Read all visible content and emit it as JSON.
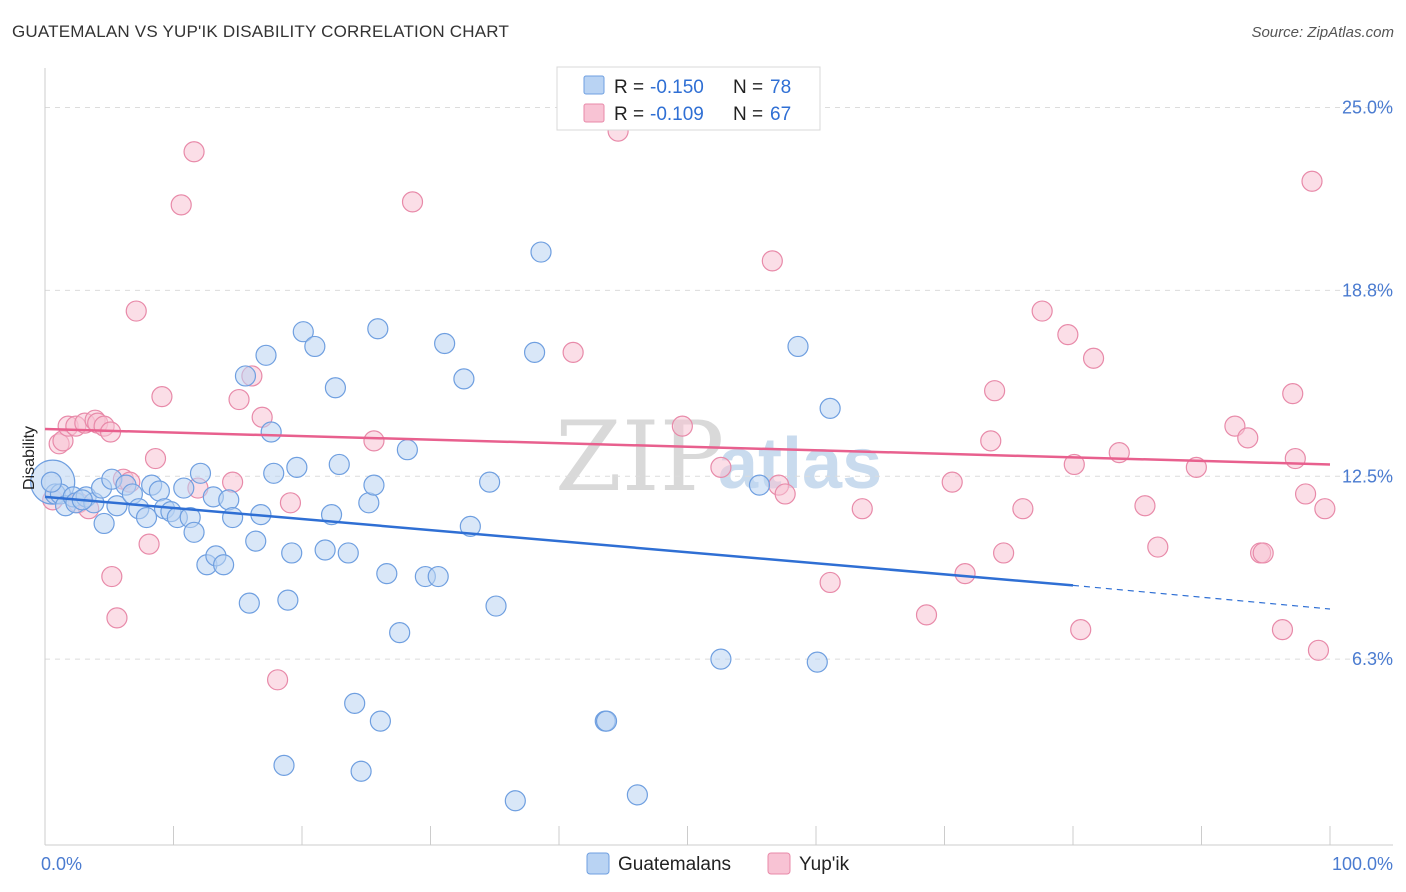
{
  "title": "GUATEMALAN VS YUP'IK DISABILITY CORRELATION CHART",
  "source": "Source: ZipAtlas.com",
  "watermark": {
    "zip": "ZIP",
    "atlas": "atlas"
  },
  "colors": {
    "blue": "#2f6fd4",
    "blue_fill": "#b9d3f3",
    "pink": "#e8608e",
    "pink_fill": "#f8c3d4"
  },
  "legend": {
    "r_label": "R = ",
    "n_label": "N = ",
    "items": [
      {
        "r": "-0.150",
        "n": "78"
      },
      {
        "r": "-0.109",
        "n": "67"
      }
    ]
  },
  "bottom_legend": [
    "Guatemalans",
    "Yup'ik"
  ],
  "chart_data": {
    "type": "scatter",
    "title": "GUATEMALAN VS YUP'IK DISABILITY CORRELATION CHART",
    "xlabel": "",
    "ylabel": "Disability",
    "xlim": [
      0,
      100
    ],
    "ylim": [
      0,
      26.0
    ],
    "x_tick_labels": [
      "0.0%",
      "100.0%"
    ],
    "y_ticks": [
      6.3,
      12.5,
      18.8,
      25.0
    ],
    "y_tick_labels": [
      "6.3%",
      "12.5%",
      "18.8%",
      "25.0%"
    ],
    "grid": true,
    "legend_position": "top-center",
    "series": [
      {
        "name": "Guatemalans",
        "r": -0.15,
        "n": 78,
        "trend": {
          "x": [
            0,
            80,
            100
          ],
          "y": [
            11.8,
            8.8,
            8.0
          ]
        },
        "points": [
          [
            0.6,
            12.3
          ],
          [
            0.8,
            11.9
          ],
          [
            1.2,
            11.9
          ],
          [
            1.6,
            11.5
          ],
          [
            2.2,
            11.8
          ],
          [
            2.4,
            11.6
          ],
          [
            3.2,
            11.8
          ],
          [
            3.8,
            11.6
          ],
          [
            4.4,
            12.1
          ],
          [
            4.6,
            10.9
          ],
          [
            5.2,
            12.4
          ],
          [
            5.6,
            11.5
          ],
          [
            6.3,
            12.2
          ],
          [
            6.8,
            11.9
          ],
          [
            7.3,
            11.4
          ],
          [
            7.9,
            11.1
          ],
          [
            8.3,
            12.2
          ],
          [
            8.9,
            12.0
          ],
          [
            9.3,
            11.4
          ],
          [
            9.8,
            11.3
          ],
          [
            10.3,
            11.1
          ],
          [
            10.8,
            12.1
          ],
          [
            11.3,
            11.1
          ],
          [
            11.6,
            10.6
          ],
          [
            12.1,
            12.6
          ],
          [
            12.6,
            9.5
          ],
          [
            13.1,
            11.8
          ],
          [
            13.3,
            9.8
          ],
          [
            13.9,
            9.5
          ],
          [
            14.3,
            11.7
          ],
          [
            14.6,
            11.1
          ],
          [
            15.6,
            15.9
          ],
          [
            15.9,
            8.2
          ],
          [
            16.4,
            10.3
          ],
          [
            16.8,
            11.2
          ],
          [
            17.2,
            16.6
          ],
          [
            17.6,
            14.0
          ],
          [
            17.8,
            12.6
          ],
          [
            18.6,
            2.7
          ],
          [
            18.9,
            8.3
          ],
          [
            19.2,
            9.9
          ],
          [
            19.6,
            12.8
          ],
          [
            20.1,
            17.4
          ],
          [
            21.0,
            16.9
          ],
          [
            21.8,
            10.0
          ],
          [
            22.3,
            11.2
          ],
          [
            22.6,
            15.5
          ],
          [
            22.9,
            12.9
          ],
          [
            23.6,
            9.9
          ],
          [
            24.1,
            4.8
          ],
          [
            24.6,
            2.5
          ],
          [
            25.2,
            11.6
          ],
          [
            25.6,
            12.2
          ],
          [
            25.9,
            17.5
          ],
          [
            26.1,
            4.2
          ],
          [
            26.6,
            9.2
          ],
          [
            27.6,
            7.2
          ],
          [
            28.2,
            13.4
          ],
          [
            29.6,
            9.1
          ],
          [
            30.6,
            9.1
          ],
          [
            31.1,
            17.0
          ],
          [
            32.6,
            15.8
          ],
          [
            33.1,
            10.8
          ],
          [
            34.6,
            12.3
          ],
          [
            35.1,
            8.1
          ],
          [
            36.6,
            1.5
          ],
          [
            38.1,
            16.7
          ],
          [
            38.6,
            20.1
          ],
          [
            43.6,
            4.2
          ],
          [
            43.7,
            4.2
          ],
          [
            46.1,
            1.7
          ],
          [
            52.6,
            6.3
          ],
          [
            55.6,
            12.2
          ],
          [
            58.6,
            16.9
          ],
          [
            60.1,
            6.2
          ],
          [
            61.1,
            14.8
          ],
          [
            0.5,
            12.3
          ],
          [
            2.9,
            11.7
          ]
        ]
      },
      {
        "name": "Yup'ik",
        "r": -0.109,
        "n": 67,
        "trend": {
          "x": [
            0,
            100
          ],
          "y": [
            14.1,
            12.9
          ]
        },
        "points": [
          [
            0.6,
            11.7
          ],
          [
            1.1,
            13.6
          ],
          [
            1.4,
            13.7
          ],
          [
            1.8,
            14.2
          ],
          [
            2.4,
            14.2
          ],
          [
            2.6,
            11.6
          ],
          [
            3.1,
            14.3
          ],
          [
            3.4,
            11.4
          ],
          [
            3.9,
            14.4
          ],
          [
            4.1,
            14.3
          ],
          [
            4.6,
            14.2
          ],
          [
            5.1,
            14.0
          ],
          [
            5.2,
            9.1
          ],
          [
            5.6,
            7.7
          ],
          [
            6.1,
            12.4
          ],
          [
            6.6,
            12.3
          ],
          [
            7.1,
            18.1
          ],
          [
            8.1,
            10.2
          ],
          [
            8.6,
            13.1
          ],
          [
            9.1,
            15.2
          ],
          [
            10.6,
            21.7
          ],
          [
            11.6,
            23.5
          ],
          [
            11.9,
            12.1
          ],
          [
            14.6,
            12.3
          ],
          [
            15.1,
            15.1
          ],
          [
            16.1,
            15.9
          ],
          [
            16.9,
            14.5
          ],
          [
            18.1,
            5.6
          ],
          [
            19.1,
            11.6
          ],
          [
            25.6,
            13.7
          ],
          [
            28.6,
            21.8
          ],
          [
            41.1,
            16.7
          ],
          [
            44.6,
            24.2
          ],
          [
            49.6,
            14.2
          ],
          [
            52.6,
            12.8
          ],
          [
            56.6,
            19.8
          ],
          [
            57.1,
            12.2
          ],
          [
            57.6,
            11.9
          ],
          [
            61.1,
            8.9
          ],
          [
            63.6,
            11.4
          ],
          [
            68.6,
            7.8
          ],
          [
            70.6,
            12.3
          ],
          [
            71.6,
            9.2
          ],
          [
            73.6,
            13.7
          ],
          [
            73.9,
            15.4
          ],
          [
            74.6,
            9.9
          ],
          [
            76.1,
            11.4
          ],
          [
            77.6,
            18.1
          ],
          [
            79.6,
            17.3
          ],
          [
            80.1,
            12.9
          ],
          [
            80.6,
            7.3
          ],
          [
            81.6,
            16.5
          ],
          [
            83.6,
            13.3
          ],
          [
            85.6,
            11.5
          ],
          [
            86.6,
            10.1
          ],
          [
            89.6,
            12.8
          ],
          [
            92.6,
            14.2
          ],
          [
            93.6,
            13.8
          ],
          [
            94.6,
            9.9
          ],
          [
            94.8,
            9.9
          ],
          [
            96.3,
            7.3
          ],
          [
            97.1,
            15.3
          ],
          [
            97.3,
            13.1
          ],
          [
            98.1,
            11.9
          ],
          [
            98.6,
            22.5
          ],
          [
            99.1,
            6.6
          ],
          [
            99.6,
            11.4
          ]
        ]
      }
    ]
  }
}
